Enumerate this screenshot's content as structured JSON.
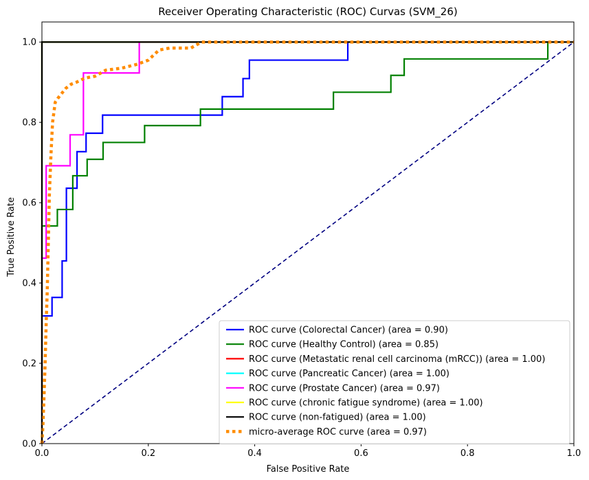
{
  "chart_data": {
    "type": "line",
    "title": "Receiver Operating Characteristic (ROC) Curvas (SVM_26)",
    "xlabel": "False Positive Rate",
    "ylabel": "True Positive Rate",
    "xlim": [
      0.0,
      1.0
    ],
    "ylim": [
      0.0,
      1.05
    ],
    "xticks": [
      0.0,
      0.2,
      0.4,
      0.6,
      0.8,
      1.0
    ],
    "yticks": [
      0.0,
      0.2,
      0.4,
      0.6,
      0.8,
      1.0
    ],
    "xtick_labels": [
      "0.0",
      "0.2",
      "0.4",
      "0.6",
      "0.8",
      "1.0"
    ],
    "ytick_labels": [
      "0.0",
      "0.2",
      "0.4",
      "0.6",
      "0.8",
      "1.0"
    ],
    "grid": false,
    "legend_position": "lower-right",
    "series": [
      {
        "name": "ROC curve (Colorectal Cancer) (area = 0.90)",
        "color": "#0000ff",
        "style": "solid",
        "x": [
          0.0,
          0.0,
          0.019,
          0.019,
          0.038,
          0.038,
          0.046,
          0.046,
          0.066,
          0.066,
          0.083,
          0.083,
          0.114,
          0.114,
          0.339,
          0.339,
          0.378,
          0.378,
          0.39,
          0.39,
          0.575,
          0.575,
          1.0
        ],
        "y": [
          0.0,
          0.318,
          0.318,
          0.364,
          0.364,
          0.455,
          0.455,
          0.636,
          0.636,
          0.727,
          0.727,
          0.773,
          0.773,
          0.818,
          0.818,
          0.864,
          0.864,
          0.909,
          0.909,
          0.955,
          0.955,
          1.0,
          1.0
        ]
      },
      {
        "name": "ROC curve (Healthy Control) (area = 0.85)",
        "color": "#008000",
        "style": "solid",
        "x": [
          0.0,
          0.0,
          0.029,
          0.029,
          0.058,
          0.058,
          0.085,
          0.085,
          0.115,
          0.115,
          0.193,
          0.193,
          0.298,
          0.298,
          0.548,
          0.548,
          0.656,
          0.656,
          0.681,
          0.681,
          0.951,
          0.951,
          1.0
        ],
        "y": [
          0.0,
          0.542,
          0.542,
          0.583,
          0.583,
          0.667,
          0.667,
          0.708,
          0.708,
          0.75,
          0.75,
          0.792,
          0.792,
          0.833,
          0.833,
          0.875,
          0.875,
          0.917,
          0.917,
          0.958,
          0.958,
          1.0,
          1.0
        ]
      },
      {
        "name": "ROC curve (Metastatic renal cell carcinoma (mRCC)) (area = 1.00)",
        "color": "#ff0000",
        "style": "solid",
        "x": [
          0.0,
          0.0,
          1.0
        ],
        "y": [
          0.0,
          1.0,
          1.0
        ]
      },
      {
        "name": "ROC curve (Pancreatic Cancer) (area = 1.00)",
        "color": "#00ffff",
        "style": "solid",
        "x": [
          0.0,
          0.0,
          1.0
        ],
        "y": [
          0.0,
          1.0,
          1.0
        ]
      },
      {
        "name": "ROC curve (Prostate Cancer) (area = 0.97)",
        "color": "#ff00ff",
        "style": "solid",
        "x": [
          0.0,
          0.0,
          0.008,
          0.008,
          0.053,
          0.053,
          0.078,
          0.078,
          0.183,
          0.183,
          1.0
        ],
        "y": [
          0.0,
          0.462,
          0.462,
          0.692,
          0.692,
          0.769,
          0.769,
          0.923,
          0.923,
          1.0,
          1.0
        ]
      },
      {
        "name": "ROC curve (chronic fatigue syndrome) (area = 1.00)",
        "color": "#ffff00",
        "style": "solid",
        "x": [
          0.0,
          0.0,
          1.0
        ],
        "y": [
          0.0,
          1.0,
          1.0
        ]
      },
      {
        "name": "ROC curve (non-fatigued) (area = 1.00)",
        "color": "#000000",
        "style": "solid",
        "x": [
          0.0,
          0.0,
          1.0
        ],
        "y": [
          0.0,
          1.0,
          1.0
        ]
      },
      {
        "name": "micro-average ROC curve (area = 0.97)",
        "color": "#ff8c00",
        "style": "dotted",
        "x": [
          0.0,
          0.002,
          0.004,
          0.006,
          0.008,
          0.01,
          0.012,
          0.014,
          0.017,
          0.02,
          0.025,
          0.03,
          0.036,
          0.045,
          0.055,
          0.065,
          0.08,
          0.1,
          0.12,
          0.15,
          0.18,
          0.2,
          0.22,
          0.24,
          0.26,
          0.28,
          0.3,
          0.32,
          0.4,
          0.6,
          0.8,
          1.0
        ],
        "y": [
          0.0,
          0.05,
          0.12,
          0.2,
          0.3,
          0.38,
          0.5,
          0.62,
          0.72,
          0.8,
          0.85,
          0.86,
          0.87,
          0.885,
          0.895,
          0.9,
          0.91,
          0.915,
          0.93,
          0.935,
          0.945,
          0.955,
          0.98,
          0.985,
          0.985,
          0.985,
          1.0,
          1.0,
          1.0,
          1.0,
          1.0,
          1.0
        ]
      },
      {
        "name": "",
        "color": "#000080",
        "style": "dashed",
        "x": [
          0.0,
          1.0
        ],
        "y": [
          0.0,
          1.0
        ]
      }
    ]
  }
}
